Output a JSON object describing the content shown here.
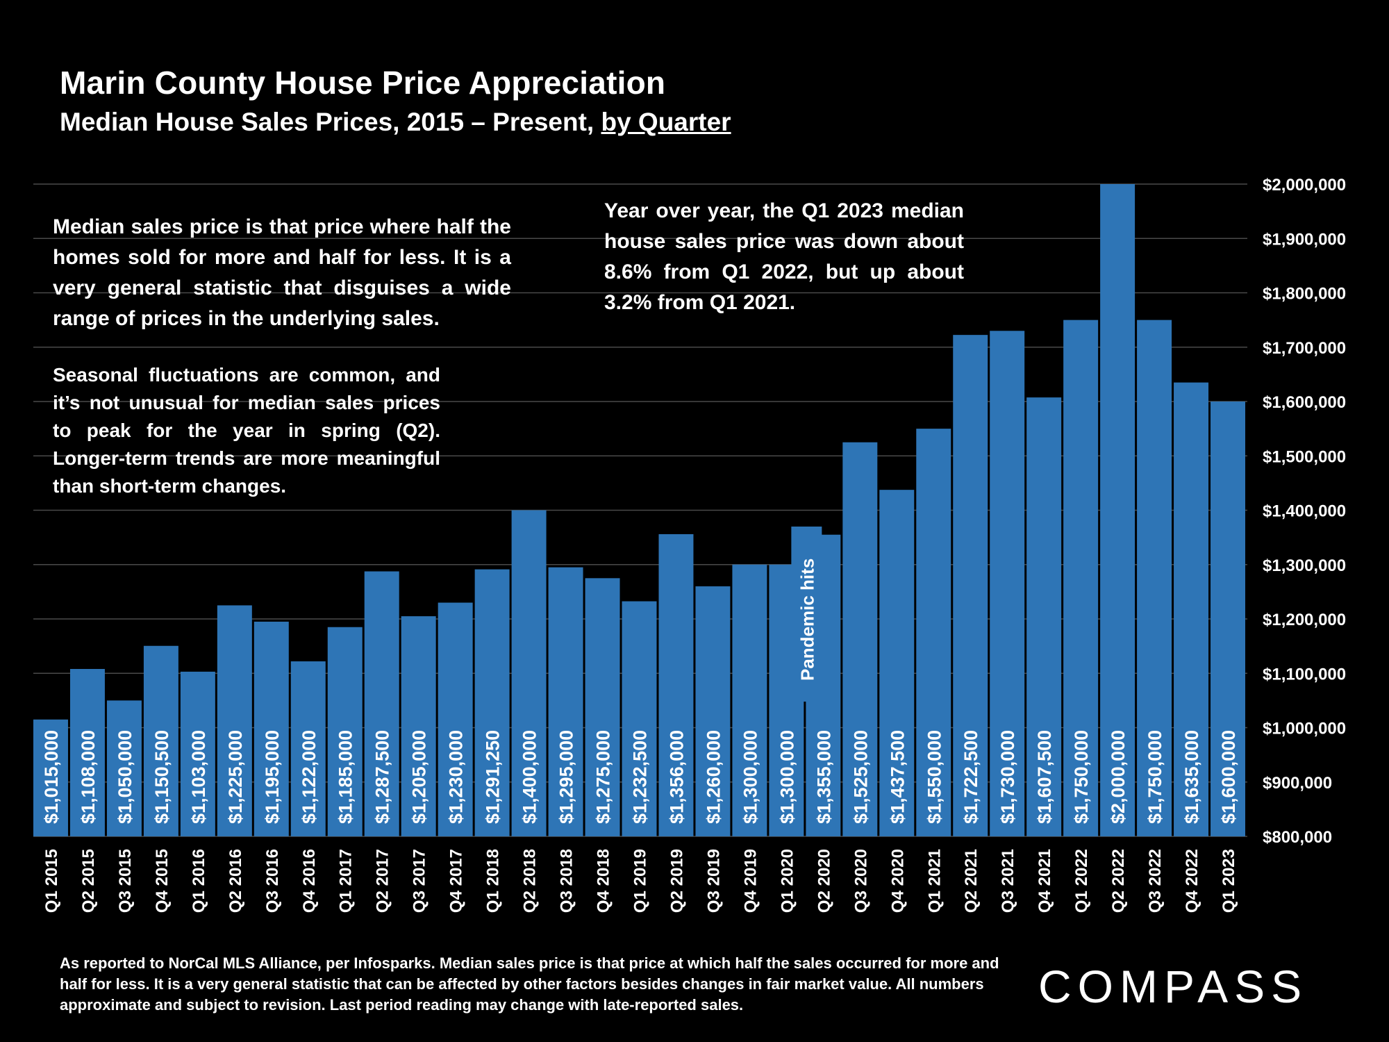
{
  "header": {
    "title": "Marin County House Price Appreciation",
    "subtitle_main": "Median House Sales Prices, 2015 – Present, ",
    "subtitle_underlined": "by Quarter"
  },
  "notes": {
    "median_definition": "Median sales price is that price where half the homes sold for more and half for less. It is a very general statistic that disguises a wide range of prices in the underlying sales.",
    "seasonal": "Seasonal fluctuations are common, and it’s not unusual for median sales prices to peak for the year in spring (Q2). Longer-term trends are more meaningful than short-term changes.",
    "yoy": "Year over year, the Q1 2023 median house sales price was down about 8.6% from Q1 2022, but up about 3.2% from Q1 2021."
  },
  "footnote": "As reported to NorCal MLS Alliance, per Infosparks. Median sales price is that price at which half the sales occurred for more and half for less. It is a very general statistic that can be affected by other factors besides changes in fair market value. All numbers approximate and subject to revision. Last period reading may change with late-reported sales.",
  "logo": "COMPASS",
  "colors": {
    "bar": "#2e75b6",
    "background": "#000000",
    "text": "#ffffff",
    "grid": "#4a4a4a"
  },
  "chart_data": {
    "type": "bar",
    "title": "Marin County House Price Appreciation",
    "categories": [
      "Q1 2015",
      "Q2 2015",
      "Q3 2015",
      "Q4 2015",
      "Q1 2016",
      "Q2 2016",
      "Q3 2016",
      "Q4 2016",
      "Q1 2017",
      "Q2 2017",
      "Q3 2017",
      "Q4 2017",
      "Q1 2018",
      "Q2 2018",
      "Q3 2018",
      "Q4 2018",
      "Q1 2019",
      "Q2 2019",
      "Q3 2019",
      "Q4 2019",
      "Q1 2020",
      "Q2 2020",
      "Q3 2020",
      "Q4 2020",
      "Q1 2021",
      "Q2 2021",
      "Q3 2021",
      "Q4 2021",
      "Q1 2022",
      "Q2 2022",
      "Q3 2022",
      "Q4 2022",
      "Q1 2023"
    ],
    "values": [
      1015000,
      1108000,
      1050000,
      1150500,
      1103000,
      1225000,
      1195000,
      1122000,
      1185000,
      1287500,
      1205000,
      1230000,
      1291250,
      1400000,
      1295000,
      1275000,
      1232500,
      1356000,
      1260000,
      1300000,
      1300000,
      1355000,
      1525000,
      1437500,
      1550000,
      1722500,
      1730000,
      1607500,
      1750000,
      2000000,
      1750000,
      1635000,
      1600000
    ],
    "data_labels": [
      "$1,015,000",
      "$1,108,000",
      "$1,050,000",
      "$1,150,500",
      "$1,103,000",
      "$1,225,000",
      "$1,195,000",
      "$1,122,000",
      "$1,185,000",
      "$1,287,500",
      "$1,205,000",
      "$1,230,000",
      "$1,291,250",
      "$1,400,000",
      "$1,295,000",
      "$1,275,000",
      "$1,232,500",
      "$1,356,000",
      "$1,260,000",
      "$1,300,000",
      "$1,300,000",
      "$1,355,000",
      "$1,525,000",
      "$1,437,500",
      "$1,550,000",
      "$1,722,500",
      "$1,730,000",
      "$1,607,500",
      "$1,750,000",
      "$2,000,000",
      "$1,750,000",
      "$1,635,000",
      "$1,600,000"
    ],
    "ylim": [
      800000,
      2000000
    ],
    "y_ticks": [
      "$800,000",
      "$900,000",
      "$1,000,000",
      "$1,100,000",
      "$1,200,000",
      "$1,300,000",
      "$1,400,000",
      "$1,500,000",
      "$1,600,000",
      "$1,700,000",
      "$1,800,000",
      "$1,900,000",
      "$2,000,000"
    ],
    "y_axis_position": "right",
    "grid": true,
    "annotation": {
      "text": "Pandemic hits",
      "at_category": "Q1 2020"
    }
  }
}
